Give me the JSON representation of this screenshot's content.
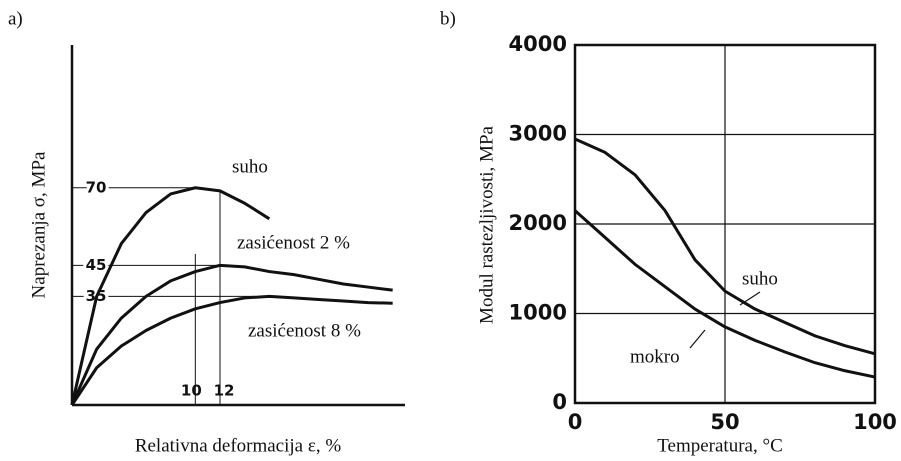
{
  "chart_data": [
    {
      "type": "line",
      "panel": "a)",
      "ylabel": "Naprezanja σ,  MPa",
      "xlabel": "Relativna deformacija ε, %",
      "xlim": [
        0,
        27
      ],
      "ylim": [
        0,
        116
      ],
      "xticks": [
        10,
        12
      ],
      "yticks": [
        35,
        45,
        70
      ],
      "grid": false,
      "x": [
        0,
        2,
        4,
        6,
        8,
        10,
        12,
        14,
        16,
        18,
        20,
        22,
        24,
        26
      ],
      "series": [
        {
          "name": "suho",
          "color": "#111111",
          "values": [
            0,
            35,
            52,
            62,
            68,
            70,
            69,
            65,
            60,
            null,
            null,
            null,
            null,
            null
          ]
        },
        {
          "name": "zasićenost 2 %",
          "color": "#111111",
          "values": [
            0,
            18,
            28,
            35,
            40,
            43,
            45,
            44.5,
            43,
            42,
            40.5,
            39,
            38,
            37
          ]
        },
        {
          "name": "zasićenost 8 %",
          "color": "#111111",
          "values": [
            0,
            12,
            19,
            24,
            28,
            31,
            33,
            34.5,
            35,
            34.5,
            34,
            33.5,
            33,
            32.8
          ]
        }
      ]
    },
    {
      "type": "line",
      "panel": "b)",
      "ylabel": "Modul rastezljivosti, MPa",
      "xlabel": "Temperatura, °C",
      "xlim": [
        0,
        100
      ],
      "ylim": [
        0,
        4000
      ],
      "xticks": [
        0,
        50,
        100
      ],
      "yticks": [
        0,
        1000,
        2000,
        3000,
        4000
      ],
      "grid": true,
      "x": [
        0,
        10,
        20,
        30,
        40,
        50,
        60,
        70,
        80,
        90,
        100
      ],
      "series": [
        {
          "name": "suho",
          "color": "#111111",
          "values": [
            2950,
            2800,
            2550,
            2150,
            1600,
            1250,
            1050,
            900,
            750,
            640,
            550
          ]
        },
        {
          "name": "mokro",
          "color": "#111111",
          "values": [
            2150,
            1850,
            1550,
            1300,
            1050,
            850,
            700,
            570,
            450,
            360,
            290
          ]
        }
      ]
    }
  ]
}
